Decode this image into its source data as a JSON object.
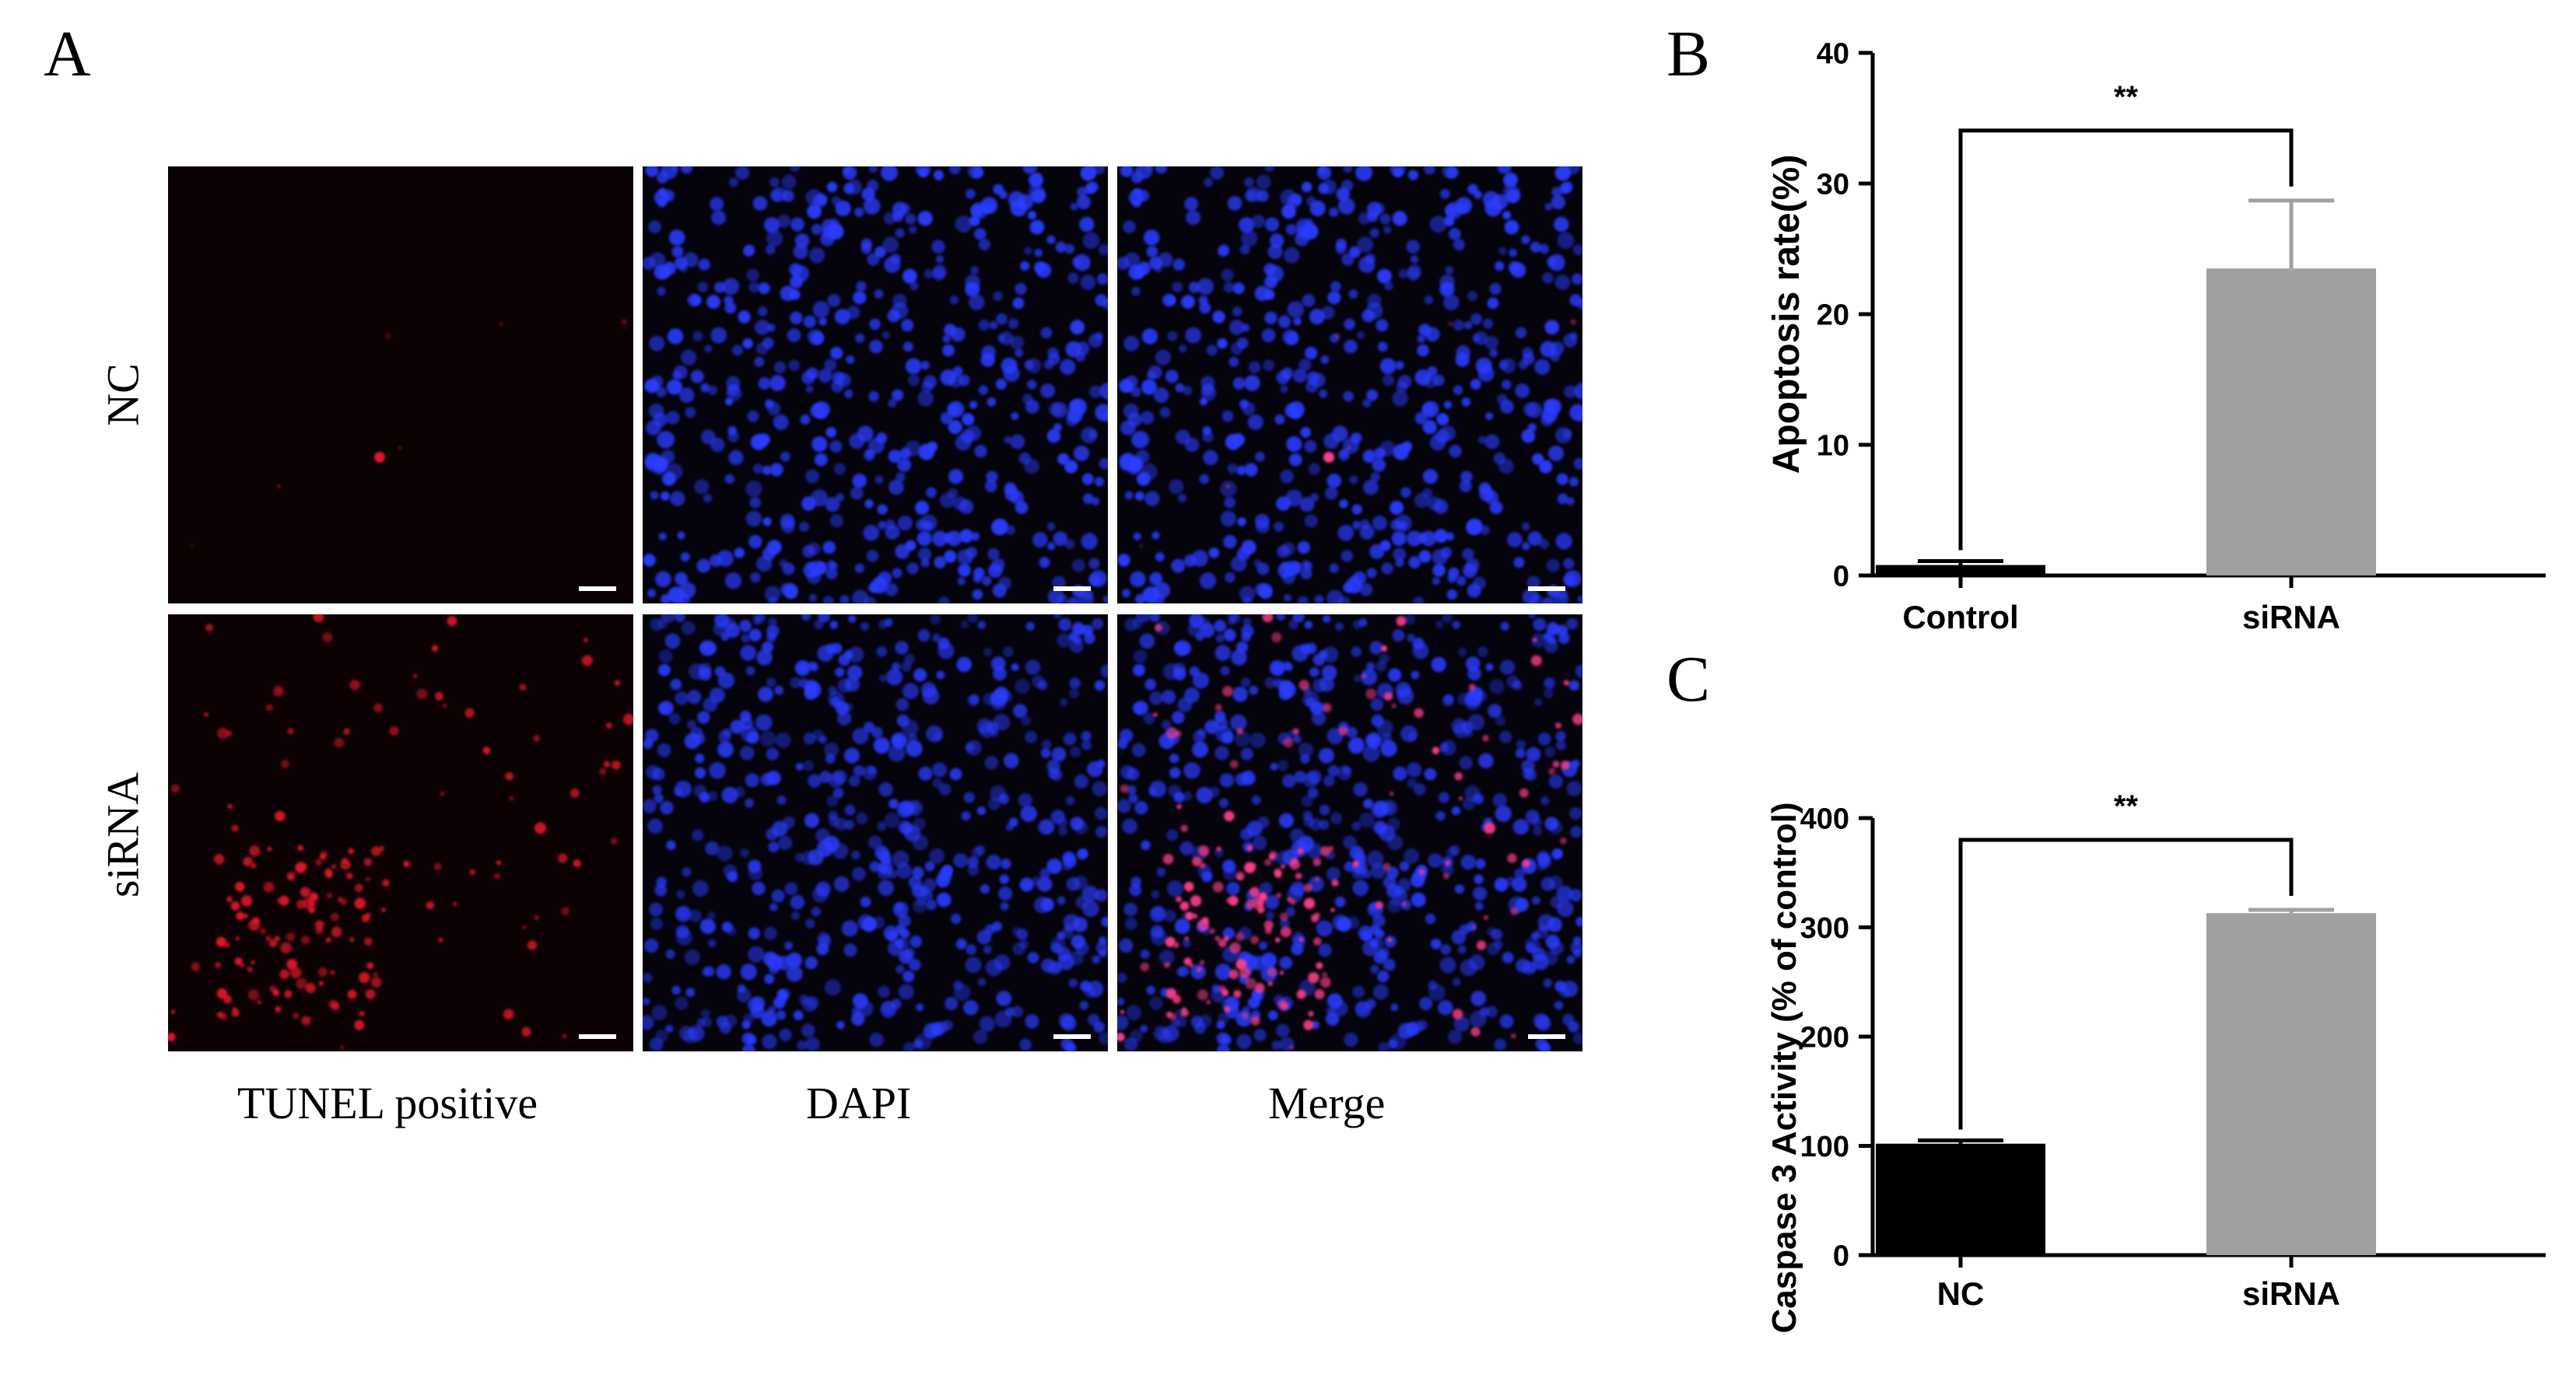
{
  "panels": {
    "a": "A",
    "b": "B",
    "c": "C"
  },
  "micrograph": {
    "rows": [
      "NC",
      "siRNA"
    ],
    "columns": [
      "TUNEL positive",
      "DAPI",
      "Merge"
    ]
  },
  "colors": {
    "tunel": "#e0182a",
    "dapi": "#2a3cff",
    "control_bar": "#000000",
    "sirna_bar": "#a0a0a3",
    "tile_bg": "#05030c"
  },
  "chart_data": [
    {
      "type": "bar",
      "panel": "B",
      "title": "",
      "xlabel": "",
      "ylabel": "Apoptosis rate(%)",
      "categories": [
        "Control",
        "siRNA"
      ],
      "values": [
        0.8,
        23.5
      ],
      "errors": [
        0.3,
        5.2
      ],
      "colors": [
        "#000000",
        "#a0a0a3"
      ],
      "ylim": [
        0,
        40
      ],
      "yticks": [
        0,
        10,
        20,
        30,
        40
      ],
      "significance": "**"
    },
    {
      "type": "bar",
      "panel": "C",
      "title": "",
      "xlabel": "",
      "ylabel": "Caspase 3 Activity (% of control)",
      "categories": [
        "NC",
        "siRNA"
      ],
      "values": [
        102,
        313
      ],
      "errors": [
        3,
        3
      ],
      "colors": [
        "#000000",
        "#a0a0a3"
      ],
      "ylim": [
        0,
        400
      ],
      "yticks": [
        0,
        100,
        200,
        300,
        400
      ],
      "significance": "**"
    }
  ]
}
